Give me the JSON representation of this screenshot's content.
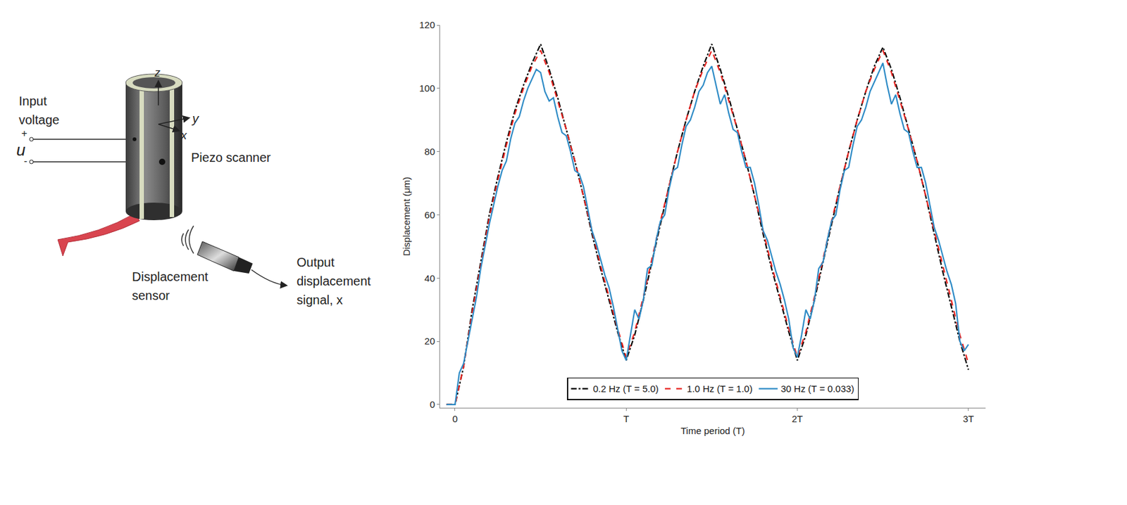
{
  "diagram": {
    "labels": {
      "input": [
        "Input",
        "voltage"
      ],
      "plus": "+",
      "minus": "-",
      "u": "u",
      "z": "z",
      "y": "y",
      "x": "x",
      "scanner": "Piezo scanner",
      "sensor": [
        "Displacement",
        "sensor"
      ],
      "output": [
        "Output",
        "displacement",
        "signal, x"
      ]
    }
  },
  "chart_data": {
    "type": "line",
    "x_label": "Time period (T)",
    "y_label": "Displacement (μm)",
    "xlim": [
      -0.088,
      3.1
    ],
    "ylim": [
      -1,
      120
    ],
    "xticks": [
      0,
      {
        "value": 1,
        "label": "T"
      },
      {
        "value": 2,
        "label": "2T"
      },
      {
        "value": 3,
        "label": "3T"
      }
    ],
    "yticks": [
      0,
      20,
      40,
      60,
      80,
      100,
      120
    ],
    "grid": false,
    "legend": "bottom",
    "series": [
      {
        "name": "0.2 Hz (T = 5.0)",
        "color": "#000000",
        "line_style": "dashdot",
        "x": [
          -0.05,
          0,
          0.05,
          0.1,
          0.15,
          0.2,
          0.25,
          0.3,
          0.35,
          0.4,
          0.45,
          0.5,
          0.55,
          0.6,
          0.65,
          0.7,
          0.75,
          0.8,
          0.85,
          0.9,
          0.95,
          1,
          1.05,
          1.1,
          1.15,
          1.2,
          1.25,
          1.3,
          1.35,
          1.4,
          1.45,
          1.5,
          1.55,
          1.6,
          1.65,
          1.7,
          1.75,
          1.8,
          1.85,
          1.9,
          1.95,
          2,
          2.05,
          2.1,
          2.15,
          2.2,
          2.25,
          2.3,
          2.35,
          2.4,
          2.45,
          2.5,
          2.55,
          2.6,
          2.65,
          2.7,
          2.75,
          2.8,
          2.85,
          2.9,
          2.95,
          3
        ],
        "values": [
          0,
          0,
          12,
          30,
          45,
          60,
          72,
          83,
          93,
          101,
          108,
          114,
          106,
          97,
          87,
          77,
          66,
          54,
          43,
          33,
          23,
          14,
          22,
          33,
          45,
          57,
          69,
          80,
          90,
          99,
          107,
          114,
          106,
          97,
          87,
          77,
          66,
          54,
          43,
          33,
          23,
          14,
          22,
          33,
          45,
          57,
          69,
          80,
          90,
          99,
          107,
          113,
          106,
          97,
          87,
          77,
          66,
          54,
          42,
          31,
          20,
          11
        ]
      },
      {
        "name": "1.0 Hz (T = 1.0)",
        "color": "#e8231f",
        "line_style": "dash",
        "x": [
          -0.05,
          0,
          0.05,
          0.1,
          0.15,
          0.2,
          0.25,
          0.3,
          0.35,
          0.4,
          0.45,
          0.5,
          0.55,
          0.6,
          0.65,
          0.7,
          0.75,
          0.8,
          0.85,
          0.9,
          0.95,
          1,
          1.05,
          1.1,
          1.15,
          1.2,
          1.25,
          1.3,
          1.35,
          1.4,
          1.45,
          1.5,
          1.55,
          1.6,
          1.65,
          1.7,
          1.75,
          1.8,
          1.85,
          1.9,
          1.95,
          2,
          2.05,
          2.1,
          2.15,
          2.2,
          2.25,
          2.3,
          2.35,
          2.4,
          2.45,
          2.5,
          2.55,
          2.6,
          2.65,
          2.7,
          2.75,
          2.8,
          2.85,
          2.9,
          2.95,
          3
        ],
        "values": [
          0,
          0,
          12,
          29,
          44,
          59,
          71,
          82,
          92,
          100,
          107,
          112,
          105,
          96,
          87,
          77,
          66,
          55,
          44,
          34,
          24,
          15,
          23,
          34,
          46,
          58,
          69,
          80,
          90,
          99,
          106,
          112,
          105,
          96,
          87,
          77,
          66,
          55,
          44,
          34,
          24,
          15,
          23,
          34,
          46,
          58,
          69,
          80,
          90,
          99,
          106,
          112,
          105,
          96,
          87,
          77,
          66,
          55,
          44,
          33,
          22,
          13
        ]
      },
      {
        "name": "30 Hz (T = 0.033)",
        "color": "#2e8bc6",
        "line_style": "solid",
        "x": [
          -0.05,
          0,
          0.025,
          0.05,
          0.075,
          0.1,
          0.125,
          0.15,
          0.175,
          0.2,
          0.225,
          0.25,
          0.275,
          0.3,
          0.325,
          0.35,
          0.375,
          0.4,
          0.425,
          0.45,
          0.475,
          0.5,
          0.525,
          0.55,
          0.575,
          0.6,
          0.625,
          0.65,
          0.675,
          0.7,
          0.725,
          0.75,
          0.775,
          0.8,
          0.825,
          0.85,
          0.875,
          0.9,
          0.925,
          0.95,
          0.975,
          1,
          1.025,
          1.05,
          1.075,
          1.1,
          1.125,
          1.15,
          1.175,
          1.2,
          1.225,
          1.25,
          1.275,
          1.3,
          1.325,
          1.35,
          1.375,
          1.4,
          1.425,
          1.45,
          1.475,
          1.5,
          1.525,
          1.55,
          1.575,
          1.6,
          1.625,
          1.65,
          1.675,
          1.7,
          1.725,
          1.75,
          1.775,
          1.8,
          1.825,
          1.85,
          1.875,
          1.9,
          1.925,
          1.95,
          1.975,
          2,
          2.025,
          2.05,
          2.075,
          2.1,
          2.125,
          2.15,
          2.175,
          2.2,
          2.225,
          2.25,
          2.275,
          2.3,
          2.325,
          2.35,
          2.375,
          2.4,
          2.425,
          2.45,
          2.475,
          2.5,
          2.525,
          2.55,
          2.575,
          2.6,
          2.625,
          2.65,
          2.675,
          2.7,
          2.725,
          2.75,
          2.775,
          2.8,
          2.825,
          2.85,
          2.875,
          2.9,
          2.925,
          2.95,
          2.975,
          3
        ],
        "values": [
          0,
          0,
          10,
          13,
          20,
          27,
          34,
          43,
          50,
          57,
          63,
          69,
          74,
          77,
          84,
          89,
          91,
          96,
          100,
          103,
          106,
          105,
          99,
          96,
          97,
          91,
          86,
          85,
          80,
          74,
          73,
          69,
          62,
          55,
          51,
          46,
          41,
          37,
          31,
          24,
          17,
          14,
          22,
          30,
          27,
          33,
          43,
          44,
          52,
          58,
          60,
          68,
          74,
          75,
          82,
          88,
          90,
          94,
          99,
          101,
          105,
          107,
          101,
          95,
          98,
          92,
          87,
          86,
          80,
          75,
          75,
          70,
          63,
          55,
          52,
          47,
          42,
          38,
          33,
          27,
          18,
          15,
          22,
          30,
          27,
          33,
          43,
          45,
          52,
          58,
          60,
          68,
          74,
          75,
          82,
          88,
          90,
          94,
          99,
          102,
          105,
          108,
          101,
          95,
          98,
          92,
          87,
          86,
          80,
          75,
          75,
          70,
          63,
          56,
          52,
          47,
          42,
          38,
          32,
          20,
          17,
          19
        ]
      }
    ]
  }
}
